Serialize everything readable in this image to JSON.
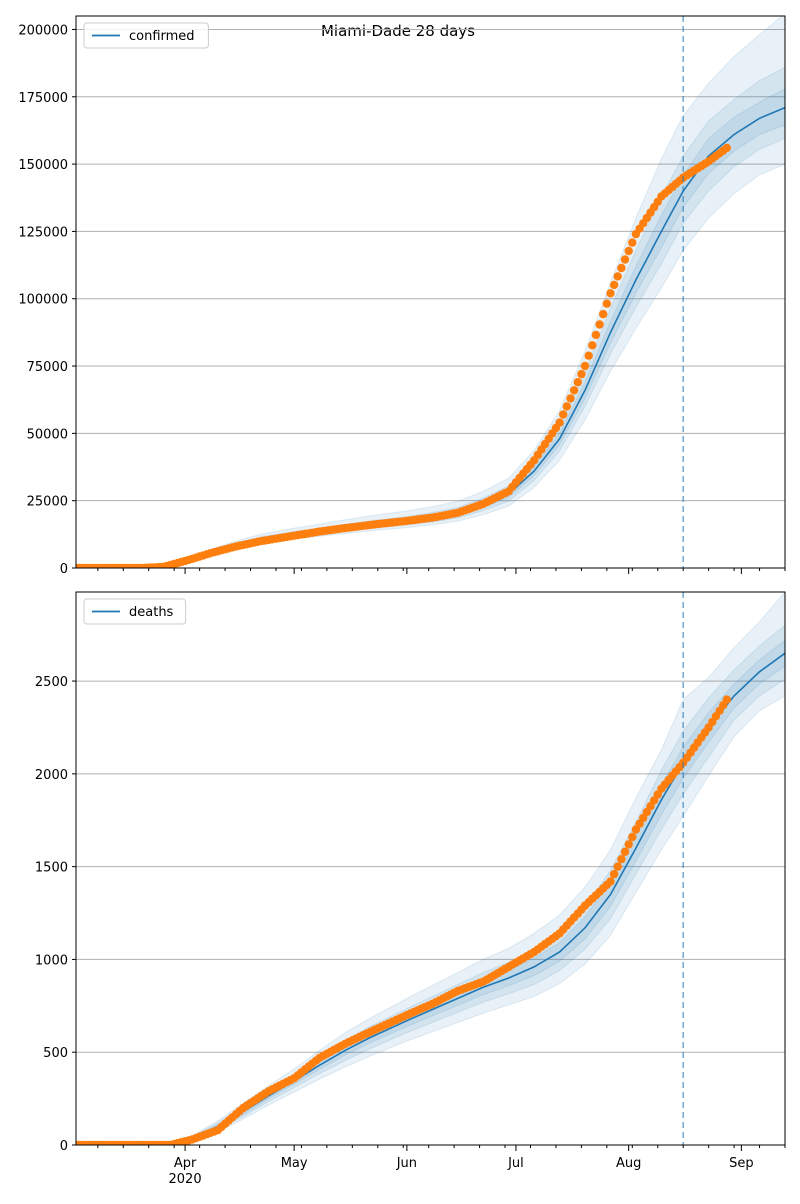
{
  "figure": {
    "title": "Miami-Dade 28 days",
    "x_tick_labels": [
      "Apr",
      "May",
      "Jun",
      "Jul",
      "Aug",
      "Sep"
    ],
    "x_year_label": "2020"
  },
  "colors": {
    "model_line": "#1f77b4",
    "observed": "#ff7f0e",
    "band": "#1f77b4",
    "grid": "#b0b0b0",
    "axes": "#000000"
  },
  "chart_data": [
    {
      "type": "line",
      "panel": "top",
      "legend": [
        "confirmed"
      ],
      "legend_position": "top-left",
      "grid": "horizontal",
      "x_type": "date",
      "xlim": [
        "2020-03-02",
        "2020-09-13"
      ],
      "ylim": [
        0,
        205000
      ],
      "y_ticks": [
        0,
        25000,
        50000,
        75000,
        100000,
        125000,
        150000,
        175000,
        200000
      ],
      "forecast_start": "2020-08-16",
      "series": [
        {
          "name": "confirmed",
          "kind": "model",
          "x": [
            "2020-03-02",
            "2020-03-10",
            "2020-03-18",
            "2020-03-26",
            "2020-04-01",
            "2020-04-08",
            "2020-04-15",
            "2020-04-22",
            "2020-05-01",
            "2020-05-08",
            "2020-05-15",
            "2020-05-22",
            "2020-06-01",
            "2020-06-08",
            "2020-06-15",
            "2020-06-22",
            "2020-06-29",
            "2020-07-06",
            "2020-07-13",
            "2020-07-20",
            "2020-07-27",
            "2020-08-03",
            "2020-08-10",
            "2020-08-16",
            "2020-08-23",
            "2020-08-30",
            "2020-09-06",
            "2020-09-13"
          ],
          "y": [
            0,
            0,
            0,
            500,
            2800,
            6000,
            8500,
            10500,
            12300,
            13500,
            14800,
            16000,
            17500,
            18800,
            20500,
            23500,
            27500,
            36000,
            48000,
            66000,
            87500,
            107000,
            125000,
            140000,
            153000,
            161000,
            167000,
            171000
          ],
          "bands": [
            {
              "lower": [
                0,
                0,
                0,
                350,
                2300,
                5200,
                7500,
                9200,
                10800,
                11800,
                12800,
                13800,
                15000,
                16000,
                17400,
                19800,
                23000,
                30000,
                40000,
                55000,
                73000,
                89000,
                104000,
                118000,
                130000,
                139000,
                146000,
                150000
              ],
              "upper": [
                0,
                0,
                0,
                700,
                3400,
                7000,
                10000,
                12600,
                14800,
                16300,
                17900,
                19400,
                21200,
                22800,
                24800,
                28500,
                33400,
                43700,
                58500,
                80500,
                106000,
                130000,
                152000,
                168000,
                180000,
                190000,
                198000,
                206000
              ]
            },
            {
              "lower": [
                0,
                0,
                0,
                400,
                2500,
                5500,
                7900,
                9700,
                11400,
                12500,
                13600,
                14700,
                16000,
                17100,
                18600,
                21300,
                24900,
                32500,
                43500,
                60000,
                79500,
                96800,
                113000,
                128000,
                140000,
                149000,
                155500,
                159500
              ],
              "upper": [
                0,
                0,
                0,
                620,
                3150,
                6550,
                9300,
                11600,
                13500,
                14800,
                16200,
                17500,
                19100,
                20600,
                22500,
                26000,
                30500,
                39800,
                53000,
                72800,
                96500,
                118000,
                138000,
                153000,
                166000,
                174000,
                181000,
                186000
              ]
            },
            {
              "lower": [
                0,
                0,
                0,
                450,
                2650,
                5750,
                8200,
                10100,
                11850,
                13000,
                14200,
                15350,
                16750,
                17950,
                19550,
                22400,
                26200,
                34300,
                45800,
                63000,
                83500,
                102000,
                119000,
                134000,
                146500,
                154800,
                161000,
                164500
              ],
              "upper": [
                0,
                0,
                0,
                560,
                2950,
                6250,
                8800,
                10900,
                12750,
                14000,
                15400,
                16650,
                18250,
                19650,
                21450,
                24600,
                28800,
                37700,
                50200,
                69000,
                91500,
                112000,
                131000,
                146000,
                159500,
                167500,
                173000,
                178000
              ]
            }
          ]
        },
        {
          "name": "",
          "kind": "observed",
          "x": [
            "2020-03-02",
            "2020-03-12",
            "2020-03-20",
            "2020-03-26",
            "2020-04-01",
            "2020-04-08",
            "2020-04-15",
            "2020-04-22",
            "2020-05-01",
            "2020-05-08",
            "2020-05-15",
            "2020-05-22",
            "2020-06-01",
            "2020-06-08",
            "2020-06-15",
            "2020-06-22",
            "2020-06-29",
            "2020-07-06",
            "2020-07-13",
            "2020-07-20",
            "2020-07-27",
            "2020-08-03",
            "2020-08-10",
            "2020-08-16",
            "2020-08-23",
            "2020-08-28"
          ],
          "y": [
            0,
            0,
            0,
            400,
            2600,
            5500,
            8000,
            10000,
            12000,
            13500,
            14800,
            16000,
            17500,
            18700,
            20500,
            23800,
            28500,
            40000,
            54000,
            75000,
            102000,
            124000,
            138000,
            145000,
            151000,
            156000
          ]
        }
      ]
    },
    {
      "type": "line",
      "panel": "bottom",
      "legend": [
        "deaths"
      ],
      "legend_position": "top-left",
      "grid": "horizontal",
      "x_type": "date",
      "xlim": [
        "2020-03-02",
        "2020-09-13"
      ],
      "ylim": [
        0,
        2980
      ],
      "y_ticks": [
        0,
        500,
        1000,
        1500,
        2000,
        2500
      ],
      "forecast_start": "2020-08-16",
      "series": [
        {
          "name": "deaths",
          "kind": "model",
          "x": [
            "2020-03-02",
            "2020-03-15",
            "2020-03-28",
            "2020-04-03",
            "2020-04-10",
            "2020-04-17",
            "2020-04-24",
            "2020-05-01",
            "2020-05-08",
            "2020-05-15",
            "2020-05-22",
            "2020-06-01",
            "2020-06-08",
            "2020-06-15",
            "2020-06-22",
            "2020-06-29",
            "2020-07-06",
            "2020-07-13",
            "2020-07-20",
            "2020-07-27",
            "2020-08-03",
            "2020-08-10",
            "2020-08-16",
            "2020-08-23",
            "2020-08-30",
            "2020-09-06",
            "2020-09-13"
          ],
          "y": [
            0,
            0,
            0,
            35,
            100,
            180,
            265,
            345,
            430,
            510,
            580,
            670,
            730,
            790,
            850,
            900,
            960,
            1040,
            1170,
            1350,
            1600,
            1860,
            2060,
            2250,
            2420,
            2550,
            2650
          ],
          "bands": [
            {
              "lower": [
                0,
                0,
                0,
                20,
                70,
                140,
                215,
                285,
                355,
                420,
                480,
                560,
                610,
                660,
                710,
                755,
                800,
                870,
                975,
                1130,
                1360,
                1590,
                1770,
                1990,
                2200,
                2340,
                2420
              ],
              "upper": [
                0,
                0,
                0,
                50,
                130,
                225,
                320,
                410,
                510,
                605,
                685,
                790,
                860,
                930,
                1000,
                1060,
                1140,
                1240,
                1390,
                1590,
                1870,
                2130,
                2400,
                2520,
                2680,
                2820,
                2980
              ]
            },
            {
              "lower": [
                0,
                0,
                0,
                25,
                80,
                155,
                235,
                310,
                385,
                455,
                520,
                605,
                660,
                715,
                770,
                815,
                865,
                940,
                1055,
                1220,
                1460,
                1700,
                1890,
                2090,
                2290,
                2420,
                2510
              ],
              "upper": [
                0,
                0,
                0,
                45,
                120,
                205,
                295,
                380,
                475,
                565,
                640,
                735,
                800,
                865,
                930,
                985,
                1055,
                1140,
                1285,
                1480,
                1740,
                2020,
                2230,
                2410,
                2560,
                2690,
                2800
              ]
            },
            {
              "lower": [
                0,
                0,
                0,
                30,
                90,
                165,
                250,
                328,
                408,
                485,
                552,
                638,
                696,
                753,
                810,
                858,
                913,
                990,
                1110,
                1285,
                1530,
                1780,
                1975,
                2170,
                2355,
                2485,
                2580
              ],
              "upper": [
                0,
                0,
                0,
                40,
                110,
                195,
                280,
                362,
                452,
                535,
                608,
                702,
                764,
                827,
                890,
                942,
                1007,
                1090,
                1230,
                1415,
                1670,
                1940,
                2145,
                2330,
                2485,
                2615,
                2720
              ]
            }
          ]
        },
        {
          "name": "",
          "kind": "observed",
          "x": [
            "2020-03-02",
            "2020-03-15",
            "2020-03-28",
            "2020-04-03",
            "2020-04-10",
            "2020-04-17",
            "2020-04-24",
            "2020-05-01",
            "2020-05-08",
            "2020-05-15",
            "2020-05-22",
            "2020-06-01",
            "2020-06-08",
            "2020-06-15",
            "2020-06-22",
            "2020-06-29",
            "2020-07-06",
            "2020-07-13",
            "2020-07-20",
            "2020-07-27",
            "2020-08-03",
            "2020-08-10",
            "2020-08-16",
            "2020-08-23",
            "2020-08-28"
          ],
          "y": [
            0,
            0,
            0,
            30,
            80,
            200,
            290,
            360,
            470,
            545,
            610,
            700,
            760,
            830,
            880,
            960,
            1040,
            1140,
            1290,
            1420,
            1700,
            1920,
            2060,
            2250,
            2400
          ]
        }
      ]
    }
  ]
}
